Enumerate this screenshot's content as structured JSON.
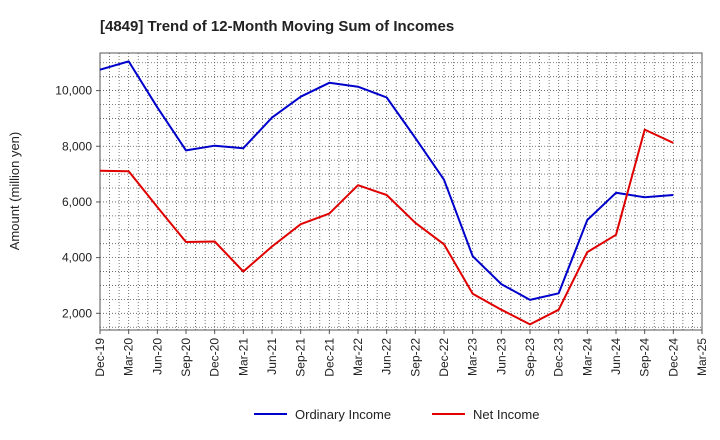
{
  "chart_data": {
    "type": "line",
    "title": "[4849]  Trend of 12-Month Moving Sum of Incomes",
    "xlabel": "",
    "ylabel": "Amount (million yen)",
    "x_ticks": [
      "Dec-19",
      "Mar-20",
      "Jun-20",
      "Sep-20",
      "Dec-20",
      "Mar-21",
      "Jun-21",
      "Sep-21",
      "Dec-21",
      "Mar-22",
      "Jun-22",
      "Sep-22",
      "Dec-22",
      "Mar-23",
      "Jun-23",
      "Sep-23",
      "Dec-23",
      "Mar-24",
      "Jun-24",
      "Sep-24",
      "Dec-24",
      "Mar-25"
    ],
    "y_ticks": [
      "2,000",
      "4,000",
      "6,000",
      "8,000",
      "10,000"
    ],
    "y_tick_values": [
      2000,
      4000,
      6000,
      8000,
      10000
    ],
    "ylim": [
      1400,
      11350
    ],
    "grid": true,
    "legend_position": "bottom",
    "categories": [
      "Dec-19",
      "Mar-20",
      "Jun-20",
      "Sep-20",
      "Dec-20",
      "Mar-21",
      "Jun-21",
      "Sep-21",
      "Dec-21",
      "Mar-22",
      "Jun-22",
      "Sep-22",
      "Dec-22",
      "Mar-23",
      "Jun-23",
      "Sep-23",
      "Dec-23",
      "Mar-24",
      "Jun-24",
      "Sep-24",
      "Dec-24"
    ],
    "series": [
      {
        "name": "Ordinary Income",
        "color": "#0000cc",
        "values": [
          10750,
          11050,
          9400,
          7850,
          8020,
          7930,
          9030,
          9780,
          10280,
          10140,
          9750,
          8300,
          6800,
          4050,
          3050,
          2480,
          2720,
          5350,
          6330,
          6170,
          6250
        ]
      },
      {
        "name": "Net Income",
        "color": "#e00000",
        "values": [
          7120,
          7100,
          5820,
          4560,
          4580,
          3500,
          4400,
          5200,
          5580,
          6600,
          6250,
          5250,
          4480,
          2700,
          2130,
          1600,
          2130,
          4200,
          4820,
          8600,
          8120
        ]
      }
    ]
  }
}
